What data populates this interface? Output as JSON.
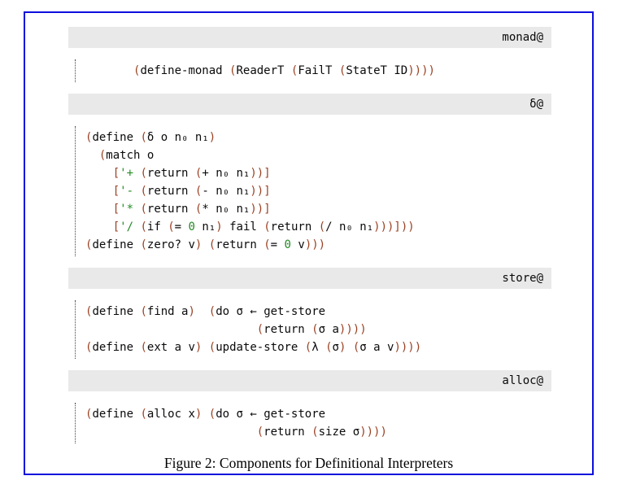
{
  "figure": {
    "caption": "Figure 2: Components for Definitional Interpreters",
    "colors": {
      "border": "#0d0ddd",
      "bar_bg": "#e9e9e9",
      "paren": "#9b4123",
      "lit": "#228b22",
      "txt": "#0a0a0a"
    },
    "sections": [
      {
        "id": "monad",
        "label": "monad@",
        "code": [
          [
            {
              "c": "txt",
              "s": "       "
            },
            {
              "c": "paren",
              "s": "("
            },
            {
              "c": "txt",
              "s": "define-monad "
            },
            {
              "c": "paren",
              "s": "("
            },
            {
              "c": "txt",
              "s": "ReaderT "
            },
            {
              "c": "paren",
              "s": "("
            },
            {
              "c": "txt",
              "s": "FailT "
            },
            {
              "c": "paren",
              "s": "("
            },
            {
              "c": "txt",
              "s": "StateT ID"
            },
            {
              "c": "paren",
              "s": "))))"
            }
          ]
        ]
      },
      {
        "id": "delta",
        "label": "δ@",
        "code": [
          [
            {
              "c": "paren",
              "s": "("
            },
            {
              "c": "txt",
              "s": "define "
            },
            {
              "c": "paren",
              "s": "("
            },
            {
              "c": "txt",
              "s": "δ o n₀ n₁"
            },
            {
              "c": "paren",
              "s": ")"
            }
          ],
          [
            {
              "c": "txt",
              "s": "  "
            },
            {
              "c": "paren",
              "s": "("
            },
            {
              "c": "txt",
              "s": "match o"
            }
          ],
          [
            {
              "c": "txt",
              "s": "    "
            },
            {
              "c": "paren",
              "s": "["
            },
            {
              "c": "lit",
              "s": "'+"
            },
            {
              "c": "txt",
              "s": " "
            },
            {
              "c": "paren",
              "s": "("
            },
            {
              "c": "txt",
              "s": "return "
            },
            {
              "c": "paren",
              "s": "("
            },
            {
              "c": "txt",
              "s": "+ n₀ n₁"
            },
            {
              "c": "paren",
              "s": "))]"
            }
          ],
          [
            {
              "c": "txt",
              "s": "    "
            },
            {
              "c": "paren",
              "s": "["
            },
            {
              "c": "lit",
              "s": "'-"
            },
            {
              "c": "txt",
              "s": " "
            },
            {
              "c": "paren",
              "s": "("
            },
            {
              "c": "txt",
              "s": "return "
            },
            {
              "c": "paren",
              "s": "("
            },
            {
              "c": "txt",
              "s": "- n₀ n₁"
            },
            {
              "c": "paren",
              "s": "))]"
            }
          ],
          [
            {
              "c": "txt",
              "s": "    "
            },
            {
              "c": "paren",
              "s": "["
            },
            {
              "c": "lit",
              "s": "'*"
            },
            {
              "c": "txt",
              "s": " "
            },
            {
              "c": "paren",
              "s": "("
            },
            {
              "c": "txt",
              "s": "return "
            },
            {
              "c": "paren",
              "s": "("
            },
            {
              "c": "txt",
              "s": "* n₀ n₁"
            },
            {
              "c": "paren",
              "s": "))]"
            }
          ],
          [
            {
              "c": "txt",
              "s": "    "
            },
            {
              "c": "paren",
              "s": "["
            },
            {
              "c": "lit",
              "s": "'/"
            },
            {
              "c": "txt",
              "s": " "
            },
            {
              "c": "paren",
              "s": "("
            },
            {
              "c": "txt",
              "s": "if "
            },
            {
              "c": "paren",
              "s": "("
            },
            {
              "c": "txt",
              "s": "= "
            },
            {
              "c": "lit",
              "s": "0"
            },
            {
              "c": "txt",
              "s": " n₁"
            },
            {
              "c": "paren",
              "s": ")"
            },
            {
              "c": "txt",
              "s": " fail "
            },
            {
              "c": "paren",
              "s": "("
            },
            {
              "c": "txt",
              "s": "return "
            },
            {
              "c": "paren",
              "s": "("
            },
            {
              "c": "txt",
              "s": "/ n₀ n₁"
            },
            {
              "c": "paren",
              "s": ")))]))"
            }
          ],
          [
            {
              "c": "paren",
              "s": "("
            },
            {
              "c": "txt",
              "s": "define "
            },
            {
              "c": "paren",
              "s": "("
            },
            {
              "c": "txt",
              "s": "zero? v"
            },
            {
              "c": "paren",
              "s": ")"
            },
            {
              "c": "txt",
              "s": " "
            },
            {
              "c": "paren",
              "s": "("
            },
            {
              "c": "txt",
              "s": "return "
            },
            {
              "c": "paren",
              "s": "("
            },
            {
              "c": "txt",
              "s": "= "
            },
            {
              "c": "lit",
              "s": "0"
            },
            {
              "c": "txt",
              "s": " v"
            },
            {
              "c": "paren",
              "s": ")))"
            }
          ]
        ]
      },
      {
        "id": "store",
        "label": "store@",
        "code": [
          [
            {
              "c": "paren",
              "s": "("
            },
            {
              "c": "txt",
              "s": "define "
            },
            {
              "c": "paren",
              "s": "("
            },
            {
              "c": "txt",
              "s": "find a"
            },
            {
              "c": "paren",
              "s": ")"
            },
            {
              "c": "txt",
              "s": "  "
            },
            {
              "c": "paren",
              "s": "("
            },
            {
              "c": "txt",
              "s": "do σ ← get-store"
            }
          ],
          [
            {
              "c": "txt",
              "s": "                         "
            },
            {
              "c": "paren",
              "s": "("
            },
            {
              "c": "txt",
              "s": "return "
            },
            {
              "c": "paren",
              "s": "("
            },
            {
              "c": "txt",
              "s": "σ a"
            },
            {
              "c": "paren",
              "s": "))))"
            }
          ],
          [
            {
              "c": "paren",
              "s": "("
            },
            {
              "c": "txt",
              "s": "define "
            },
            {
              "c": "paren",
              "s": "("
            },
            {
              "c": "txt",
              "s": "ext a v"
            },
            {
              "c": "paren",
              "s": ")"
            },
            {
              "c": "txt",
              "s": " "
            },
            {
              "c": "paren",
              "s": "("
            },
            {
              "c": "txt",
              "s": "update-store "
            },
            {
              "c": "paren",
              "s": "("
            },
            {
              "c": "txt",
              "s": "λ "
            },
            {
              "c": "paren",
              "s": "("
            },
            {
              "c": "txt",
              "s": "σ"
            },
            {
              "c": "paren",
              "s": ")"
            },
            {
              "c": "txt",
              "s": " "
            },
            {
              "c": "paren",
              "s": "("
            },
            {
              "c": "txt",
              "s": "σ a v"
            },
            {
              "c": "paren",
              "s": "))))"
            }
          ]
        ]
      },
      {
        "id": "alloc",
        "label": "alloc@",
        "code": [
          [
            {
              "c": "paren",
              "s": "("
            },
            {
              "c": "txt",
              "s": "define "
            },
            {
              "c": "paren",
              "s": "("
            },
            {
              "c": "txt",
              "s": "alloc x"
            },
            {
              "c": "paren",
              "s": ")"
            },
            {
              "c": "txt",
              "s": " "
            },
            {
              "c": "paren",
              "s": "("
            },
            {
              "c": "txt",
              "s": "do σ ← get-store"
            }
          ],
          [
            {
              "c": "txt",
              "s": "                         "
            },
            {
              "c": "paren",
              "s": "("
            },
            {
              "c": "txt",
              "s": "return "
            },
            {
              "c": "paren",
              "s": "("
            },
            {
              "c": "txt",
              "s": "size σ"
            },
            {
              "c": "paren",
              "s": "))))"
            }
          ]
        ]
      }
    ]
  }
}
